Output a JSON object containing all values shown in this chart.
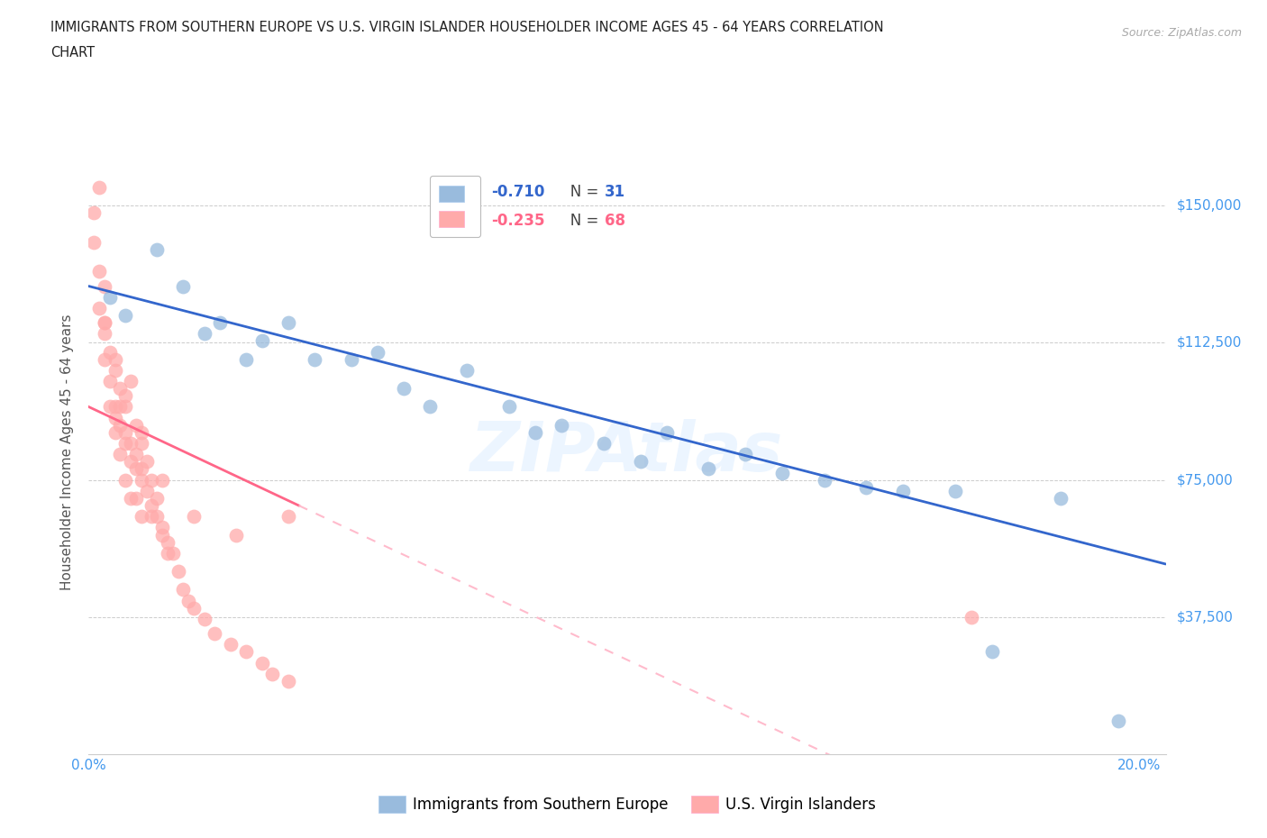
{
  "title_line1": "IMMIGRANTS FROM SOUTHERN EUROPE VS U.S. VIRGIN ISLANDER HOUSEHOLDER INCOME AGES 45 - 64 YEARS CORRELATION",
  "title_line2": "CHART",
  "source": "Source: ZipAtlas.com",
  "ylabel": "Householder Income Ages 45 - 64 years",
  "watermark": "ZIPAtlas",
  "legend_blue_r": "R = -0.710",
  "legend_blue_n": "N = 31",
  "legend_pink_r": "R = -0.235",
  "legend_pink_n": "N = 68",
  "blue_scatter_x": [
    0.004,
    0.007,
    0.013,
    0.018,
    0.022,
    0.025,
    0.03,
    0.033,
    0.038,
    0.043,
    0.05,
    0.055,
    0.06,
    0.065,
    0.072,
    0.08,
    0.085,
    0.09,
    0.098,
    0.105,
    0.11,
    0.118,
    0.125,
    0.132,
    0.14,
    0.148,
    0.155,
    0.165,
    0.172,
    0.185,
    0.196
  ],
  "blue_scatter_y": [
    125000,
    120000,
    138000,
    128000,
    115000,
    118000,
    108000,
    113000,
    118000,
    108000,
    108000,
    110000,
    100000,
    95000,
    105000,
    95000,
    88000,
    90000,
    85000,
    80000,
    88000,
    78000,
    82000,
    77000,
    75000,
    73000,
    72000,
    72000,
    28000,
    70000,
    9000
  ],
  "pink_scatter_x": [
    0.001,
    0.001,
    0.002,
    0.002,
    0.003,
    0.003,
    0.003,
    0.004,
    0.004,
    0.004,
    0.005,
    0.005,
    0.005,
    0.005,
    0.006,
    0.006,
    0.006,
    0.007,
    0.007,
    0.007,
    0.007,
    0.008,
    0.008,
    0.008,
    0.009,
    0.009,
    0.009,
    0.01,
    0.01,
    0.01,
    0.011,
    0.011,
    0.012,
    0.012,
    0.013,
    0.013,
    0.014,
    0.015,
    0.016,
    0.017,
    0.018,
    0.019,
    0.02,
    0.022,
    0.024,
    0.027,
    0.03,
    0.033,
    0.035,
    0.038,
    0.002,
    0.003,
    0.005,
    0.007,
    0.009,
    0.012,
    0.015,
    0.008,
    0.01,
    0.014,
    0.003,
    0.006,
    0.01,
    0.014,
    0.02,
    0.028,
    0.038,
    0.168
  ],
  "pink_scatter_y": [
    148000,
    140000,
    132000,
    122000,
    115000,
    108000,
    118000,
    110000,
    102000,
    95000,
    92000,
    105000,
    95000,
    88000,
    100000,
    90000,
    82000,
    95000,
    85000,
    75000,
    88000,
    80000,
    70000,
    85000,
    78000,
    70000,
    82000,
    75000,
    65000,
    78000,
    72000,
    80000,
    68000,
    75000,
    65000,
    70000,
    62000,
    58000,
    55000,
    50000,
    45000,
    42000,
    40000,
    37000,
    33000,
    30000,
    28000,
    25000,
    22000,
    20000,
    155000,
    128000,
    108000,
    98000,
    90000,
    65000,
    55000,
    102000,
    88000,
    60000,
    118000,
    95000,
    85000,
    75000,
    65000,
    60000,
    65000,
    37500
  ],
  "blue_color": "#99BBDD",
  "pink_color": "#FFAAAA",
  "blue_line_color": "#3366CC",
  "pink_line_color": "#FF6688",
  "pink_dash_color": "#FFBBCC",
  "xlim": [
    0.0,
    0.205
  ],
  "ylim": [
    0,
    165000
  ],
  "xtick_vals": [
    0.0,
    0.04,
    0.08,
    0.12,
    0.16,
    0.2
  ],
  "ytick_vals": [
    0,
    37500,
    75000,
    112500,
    150000
  ],
  "ytick_labels": [
    "",
    "$37,500",
    "$75,000",
    "$112,500",
    "$150,000"
  ],
  "grid_color": "#CCCCCC",
  "background_color": "#FFFFFF",
  "title_color": "#222222",
  "axis_label_color": "#555555",
  "tick_label_color": "#4499EE",
  "source_color": "#AAAAAA"
}
